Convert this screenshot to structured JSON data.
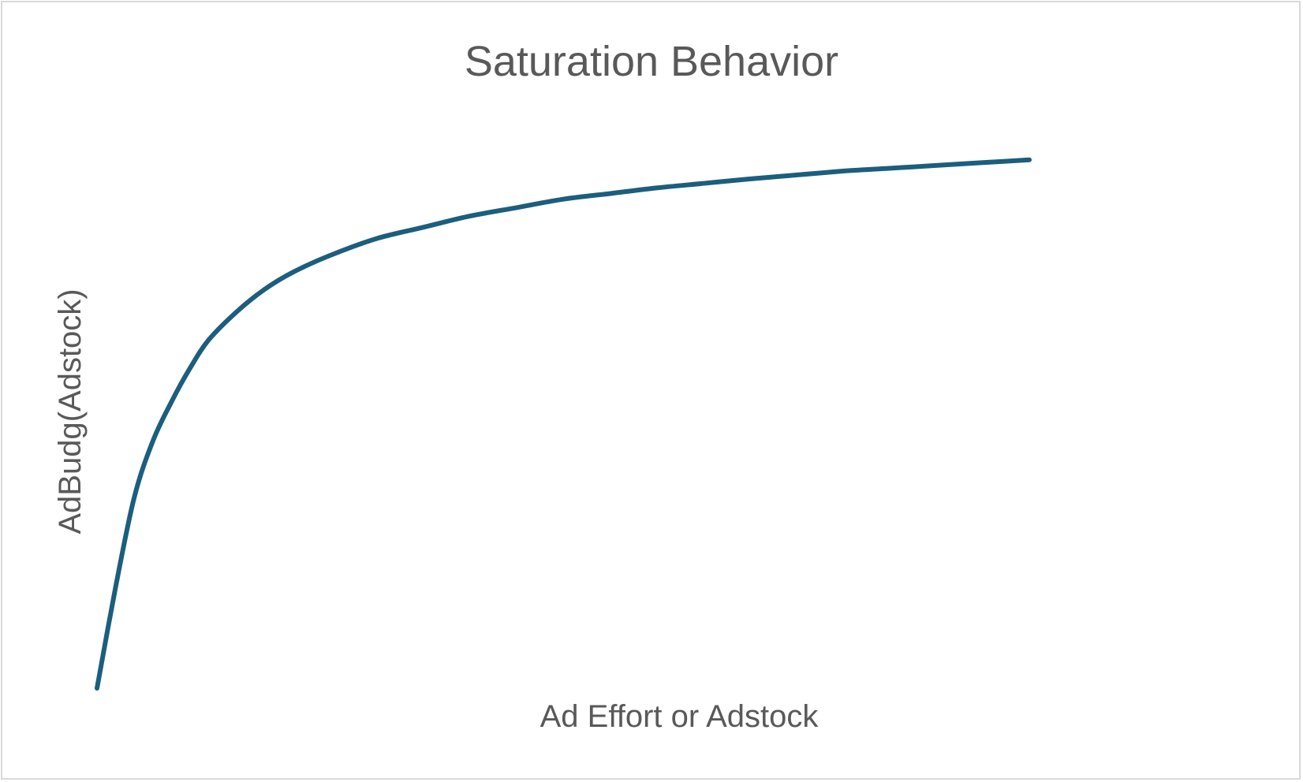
{
  "chart_data": {
    "type": "line",
    "title": "Saturation Behavior",
    "xlabel": "Ad Effort or Adstock",
    "ylabel": "AdBudg(Adstock)",
    "grid": false,
    "legend": "none",
    "line_color": "#1b5e7e",
    "xlim": [
      0,
      100
    ],
    "ylim": [
      0,
      1
    ],
    "series": [
      {
        "x": [
          0,
          2,
          4,
          6,
          8,
          10,
          12,
          15,
          18,
          21,
          25,
          30,
          35,
          40,
          45,
          50,
          55,
          60,
          65,
          70,
          75,
          80,
          85,
          90,
          95,
          100
        ],
        "values": [
          0,
          0.18,
          0.34,
          0.44,
          0.51,
          0.57,
          0.62,
          0.67,
          0.71,
          0.74,
          0.77,
          0.8,
          0.82,
          0.84,
          0.855,
          0.87,
          0.88,
          0.89,
          0.898,
          0.906,
          0.913,
          0.92,
          0.925,
          0.93,
          0.935,
          0.94
        ]
      }
    ]
  }
}
